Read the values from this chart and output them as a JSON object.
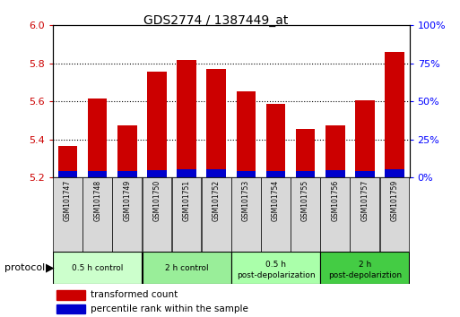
{
  "title": "GDS2774 / 1387449_at",
  "samples": [
    "GSM101747",
    "GSM101748",
    "GSM101749",
    "GSM101750",
    "GSM101751",
    "GSM101752",
    "GSM101753",
    "GSM101754",
    "GSM101755",
    "GSM101756",
    "GSM101757",
    "GSM101759"
  ],
  "red_values": [
    5.365,
    5.615,
    5.475,
    5.755,
    5.82,
    5.77,
    5.655,
    5.585,
    5.455,
    5.475,
    5.605,
    5.86
  ],
  "blue_values": [
    5.235,
    5.235,
    5.235,
    5.24,
    5.245,
    5.245,
    5.235,
    5.235,
    5.235,
    5.24,
    5.235,
    5.245
  ],
  "y_min": 5.2,
  "y_max": 6.0,
  "y_ticks": [
    5.2,
    5.4,
    5.6,
    5.8,
    6.0
  ],
  "right_y_ticks": [
    0,
    25,
    50,
    75,
    100
  ],
  "right_y_labels": [
    "0%",
    "25%",
    "50%",
    "75%",
    "100%"
  ],
  "protocols": [
    {
      "label": "0.5 h control",
      "indices": [
        0,
        1,
        2
      ],
      "color": "#ccffcc"
    },
    {
      "label": "2 h control",
      "indices": [
        3,
        4,
        5
      ],
      "color": "#99ee99"
    },
    {
      "label": "0.5 h post-depolarization",
      "indices": [
        6,
        7,
        8
      ],
      "color": "#aaffaa"
    },
    {
      "label": "2 h post-depolariztion",
      "indices": [
        9,
        10,
        11
      ],
      "color": "#44cc44"
    }
  ],
  "bar_width": 0.65,
  "red_color": "#cc0000",
  "blue_color": "#0000cc",
  "protocol_label": "protocol"
}
